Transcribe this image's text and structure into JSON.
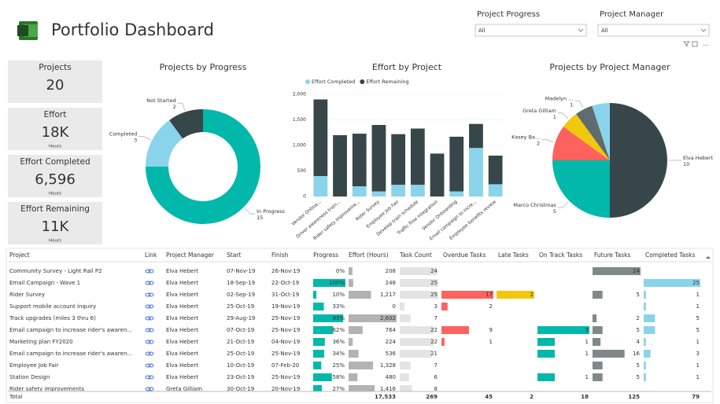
{
  "header": {
    "title": "Portfolio Dashboard"
  },
  "filters": [
    {
      "label": "Project Progress",
      "value": "All"
    },
    {
      "label": "Project Manager",
      "value": "All"
    }
  ],
  "cards": [
    {
      "title": "Projects",
      "value": 20
    },
    {
      "title": "Effort",
      "value": "18K",
      "unit": "Hours"
    },
    {
      "title": "Effort Completed",
      "value": "6,596",
      "unit": "Hours"
    },
    {
      "title": "Effort Remaining",
      "value": "11K",
      "unit": "Hours"
    }
  ],
  "chart_data": [
    {
      "type": "donut",
      "title": "Projects by Progress",
      "categories": [
        "In Progress",
        "Completed",
        "Not Started"
      ],
      "values": [
        15,
        3,
        2
      ],
      "colors": [
        "#01B8AA",
        "#8AD4EB",
        "#374649"
      ]
    },
    {
      "type": "bar",
      "title": "Effort by Project",
      "stacked": true,
      "categories": [
        "Vendor Onboa...",
        "Driver awareness train...",
        "Rider safety improveme...",
        "Rider Survey",
        "Employee Job Fair",
        "Develop train schedule",
        "Traffic flow integration",
        "Vendor Onboarding",
        "Email campaign to incre...",
        "Employee benefits review"
      ],
      "series": [
        {
          "name": "Effort Completed",
          "color": "#8AD4EB",
          "values": [
            400,
            0,
            200,
            100,
            230,
            230,
            0,
            100,
            950,
            240
          ]
        },
        {
          "name": "Effort Remaining",
          "color": "#374649",
          "values": [
            1500,
            1200,
            1030,
            1300,
            990,
            1100,
            840,
            1070,
            470,
            560
          ]
        }
      ],
      "ylim": [
        0,
        2000
      ],
      "yticks": [
        0,
        500,
        {
          "value": 1000,
          "label": "1,000"
        },
        {
          "value": 1500,
          "label": "1,500"
        },
        {
          "value": 2000,
          "label": "2,000"
        }
      ],
      "grid": true,
      "legend": "top"
    },
    {
      "type": "pie",
      "title": "Projects by Project Manager",
      "categories": [
        "Elva Hebert",
        "Marco Christmas",
        "Kasey Ba...",
        "Greta Gilliam",
        "Madelyn ...",
        null
      ],
      "values": [
        10,
        5,
        2,
        1,
        1,
        1
      ],
      "colors": [
        "#374649",
        "#01B8AA",
        "#FD625E",
        "#F2C80F",
        "#5F6B6D",
        "#8AD4EB"
      ]
    }
  ],
  "table": {
    "columns": [
      "Project",
      "Link",
      "Project Manager",
      "Start",
      "Finish",
      "Progress",
      "Effort (Hours)",
      "Task Count",
      "Overdue Tasks",
      "Late Tasks",
      "On Track Tasks",
      "Future Tasks",
      "Completed Tasks"
    ],
    "bar_colors": [
      null,
      null,
      null,
      null,
      "#01B8AA",
      "#B3B3B3",
      "#E3E3E3",
      "#FD625E",
      "#F2C80F",
      "#01B8AA",
      "#7F898A",
      "#8AD4EB"
    ],
    "rows": [
      [
        "Community Survey - Light Rail P2",
        "Elva Hebert",
        "07-Nov-19",
        "26-Nov-19",
        {
          "value": 0,
          "label": "0%"
        },
        208,
        24,
        null,
        null,
        null,
        24,
        null
      ],
      [
        "Email Campaign - Wave 1",
        "Elva Hebert",
        "18-Sep-19",
        "22-Oct-19",
        {
          "value": 100,
          "label": "100%"
        },
        248,
        25,
        null,
        null,
        null,
        null,
        25
      ],
      [
        "Rider Survey",
        "Elva Hebert",
        "02-Sep-19",
        "31-Oct-19",
        {
          "value": 10,
          "label": "10%"
        },
        {
          "value": 1217,
          "label": "1,217"
        },
        25,
        17,
        2,
        null,
        5,
        1
      ],
      [
        "Support mobile account inquiry",
        "Elva Hebert",
        "25-Oct-19",
        "19-Nov-19",
        {
          "value": 33,
          "label": "33%"
        },
        0,
        3,
        2,
        null,
        null,
        null,
        1
      ],
      [
        "Track upgrades (miles 3 thru 6)",
        "Elva Hebert",
        "29-Aug-19",
        "25-Nov-19",
        {
          "value": 93,
          "label": "93%"
        },
        {
          "value": 2602,
          "label": "2,602"
        },
        7,
        null,
        null,
        null,
        2,
        5
      ],
      [
        "Email campaign to increase rider's awaren...",
        "Elva Hebert",
        "07-Oct-19",
        "25-Nov-19",
        {
          "value": 62,
          "label": "62%"
        },
        764,
        22,
        9,
        null,
        3,
        5,
        5
      ],
      [
        "Marketing plan FY2020",
        "Elva Hebert",
        "21-Oct-19",
        "04-Nov-19",
        {
          "value": 36,
          "label": "36%"
        },
        224,
        22,
        1,
        null,
        1,
        4,
        1
      ],
      [
        "Email campaign to increase rider's awaren...",
        "Elva Hebert",
        "25-Oct-19",
        "25-Nov-19",
        {
          "value": 34,
          "label": "34%"
        },
        536,
        21,
        null,
        null,
        1,
        16,
        3
      ],
      [
        "Employee Job Fair",
        "Elva Hebert",
        "10-Oct-19",
        "07-Feb-20",
        {
          "value": 25,
          "label": "25%"
        },
        {
          "value": 1328,
          "label": "1,328"
        },
        7,
        null,
        null,
        null,
        5,
        1
      ],
      [
        "Station Design",
        "Elva Hebert",
        "23-Oct-19",
        "25-Nov-19",
        {
          "value": 58,
          "label": "58%"
        },
        480,
        6,
        null,
        null,
        1,
        5,
        1
      ],
      [
        "Rider safety improvements",
        "Greta Gilliam",
        "30-Oct-19",
        "20-Nov-19",
        {
          "value": 27,
          "label": "27%"
        },
        {
          "value": 1416,
          "label": "1,416"
        },
        8,
        null,
        null,
        null,
        null,
        null
      ]
    ],
    "total": [
      "Total",
      null,
      null,
      null,
      null,
      {
        "value": 17533,
        "label": "17,533"
      },
      269,
      45,
      2,
      18,
      125,
      79
    ]
  }
}
